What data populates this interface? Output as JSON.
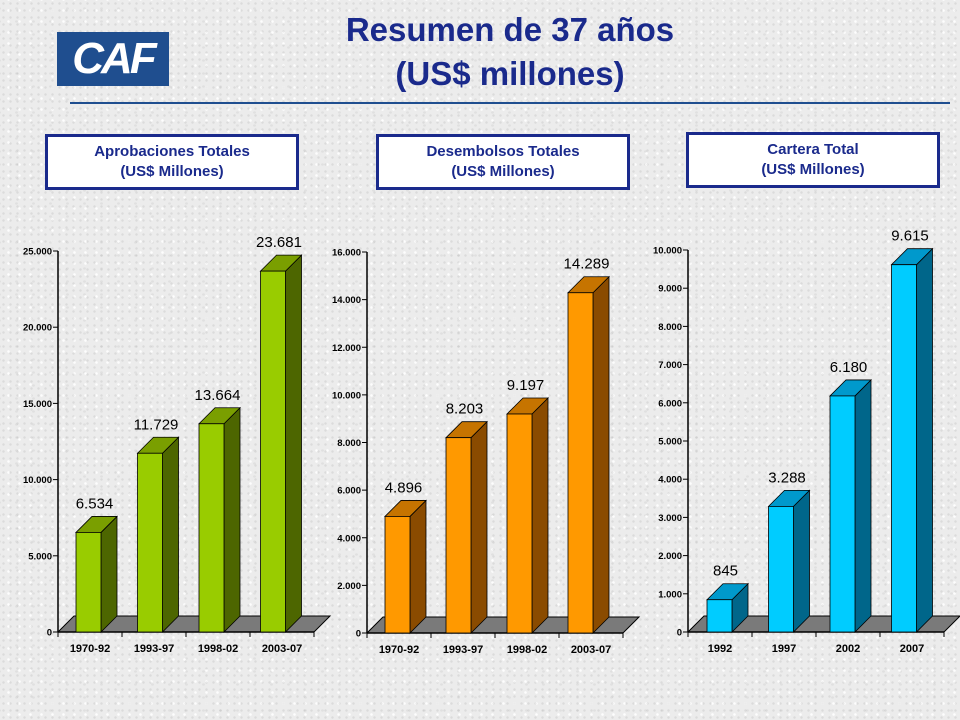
{
  "header": {
    "logo_text": "CAF",
    "title_line1": "Resumen de 37 años",
    "title_line2": "(US$ millones)"
  },
  "chart_data": [
    {
      "type": "bar",
      "title": "Aprobaciones Totales",
      "subtitle": "(US$ Millones)",
      "categories": [
        "1970-92",
        "1993-97",
        "1998-02",
        "2003-07"
      ],
      "values": [
        6534,
        11729,
        13664,
        23681
      ],
      "value_labels": [
        "6.534",
        "11.729",
        "13.664",
        "23.681"
      ],
      "ylim": [
        0,
        25000
      ],
      "yticks": [
        0,
        5000,
        10000,
        15000,
        20000,
        25000
      ],
      "ytick_labels": [
        "0",
        "5.000",
        "10.000",
        "15.000",
        "20.000",
        "25.000"
      ],
      "color": "#99cc00",
      "side_color": "#4d6600",
      "top_color": "#7a9f00"
    },
    {
      "type": "bar",
      "title": "Desembolsos Totales",
      "subtitle": "(US$ Millones)",
      "categories": [
        "1970-92",
        "1993-97",
        "1998-02",
        "2003-07"
      ],
      "values": [
        4896,
        8203,
        9197,
        14289
      ],
      "value_labels": [
        "4.896",
        "8.203",
        "9.197",
        "14.289"
      ],
      "ylim": [
        0,
        16000
      ],
      "yticks": [
        0,
        2000,
        4000,
        6000,
        8000,
        10000,
        12000,
        14000,
        16000
      ],
      "ytick_labels": [
        "0",
        "2.000",
        "4.000",
        "6.000",
        "8.000",
        "10.000",
        "12.000",
        "14.000",
        "16.000"
      ],
      "color": "#ff9900",
      "side_color": "#8a4b00",
      "top_color": "#c67400"
    },
    {
      "type": "bar",
      "title": "Cartera Total",
      "subtitle": "(US$ Millones)",
      "categories": [
        "1992",
        "1997",
        "2002",
        "2007"
      ],
      "values": [
        845,
        3288,
        6180,
        9615
      ],
      "value_labels": [
        "845",
        "3.288",
        "6.180",
        "9.615"
      ],
      "ylim": [
        0,
        10000
      ],
      "yticks": [
        0,
        1000,
        2000,
        3000,
        4000,
        5000,
        6000,
        7000,
        8000,
        9000,
        10000
      ],
      "ytick_labels": [
        "0",
        "1.000",
        "2.000",
        "3.000",
        "4.000",
        "5.000",
        "6.000",
        "7.000",
        "8.000",
        "9.000",
        "10.000"
      ],
      "color": "#00ccff",
      "side_color": "#00668a",
      "top_color": "#0099cc"
    }
  ]
}
